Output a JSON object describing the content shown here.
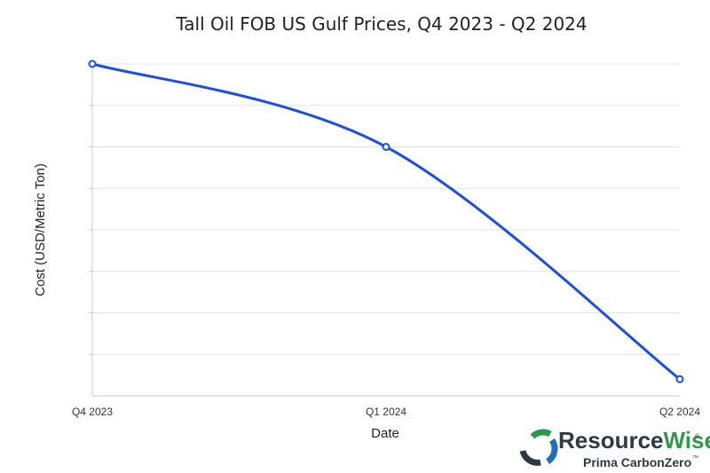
{
  "chart_data": {
    "type": "line",
    "title": "Tall Oil FOB US Gulf Prices, Q4 2023 - Q2 2024",
    "xlabel": "Date",
    "ylabel": "Cost (USD/Metric Ton)",
    "categories": [
      "Q4 2023",
      "Q1 2024",
      "Q2 2024"
    ],
    "series": [
      {
        "values": [
          1.0,
          0.75,
          0.05
        ],
        "color": "#1a4fe0"
      }
    ],
    "ylim": [
      0,
      1.0
    ],
    "y_ticks_labeled": false,
    "grid": true,
    "legend": "none"
  },
  "logo": {
    "name_resource": "Resource",
    "name_wise": "Wise",
    "registered": "®",
    "subtitle": "Prima CarbonZero",
    "trademark": "™",
    "colors": {
      "dark": "#2b3a44",
      "green": "#2e9a47",
      "blue": "#1f6fb2"
    }
  }
}
